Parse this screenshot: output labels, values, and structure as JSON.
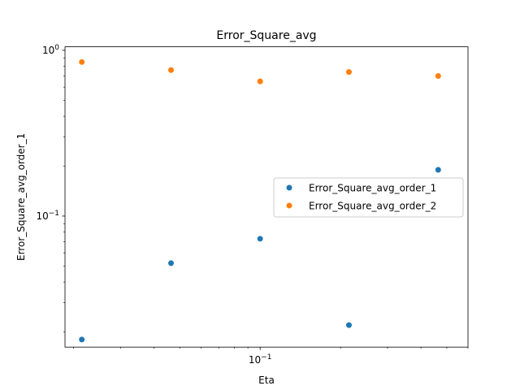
{
  "chart_data": {
    "type": "scatter",
    "title": "Error_Square_avg",
    "xlabel": "Eta",
    "ylabel": "Error_Square_avg_order_1",
    "xscale": "log",
    "yscale": "log",
    "xlim": [
      0.0186,
      0.6
    ],
    "ylim": [
      0.0162,
      1.05
    ],
    "x_major_ticks": [
      {
        "value": 0.1,
        "base": "10",
        "exp": "−1"
      }
    ],
    "y_major_ticks": [
      {
        "value": 1.0,
        "base": "10",
        "exp": "0"
      },
      {
        "value": 0.1,
        "base": "10",
        "exp": "−1"
      }
    ],
    "x_minor_ticks": [
      0.02,
      0.03,
      0.04,
      0.05,
      0.06,
      0.07,
      0.08,
      0.09,
      0.2,
      0.3,
      0.4,
      0.5,
      0.6
    ],
    "y_minor_ticks": [
      0.02,
      0.03,
      0.04,
      0.05,
      0.06,
      0.07,
      0.08,
      0.09,
      0.2,
      0.3,
      0.4,
      0.5,
      0.6,
      0.7,
      0.8,
      0.9
    ],
    "grid": false,
    "legend_position": "center-right",
    "series": [
      {
        "name": "Error_Square_avg_order_1",
        "color": "#1f77b4",
        "x": [
          0.0215,
          0.0464,
          0.1,
          0.215,
          0.464
        ],
        "y": [
          0.018,
          0.052,
          0.073,
          0.022,
          0.19
        ]
      },
      {
        "name": "Error_Square_avg_order_2",
        "color": "#ff7f0e",
        "x": [
          0.0215,
          0.0464,
          0.1,
          0.215,
          0.464
        ],
        "y": [
          0.85,
          0.76,
          0.65,
          0.74,
          0.7
        ]
      }
    ]
  }
}
